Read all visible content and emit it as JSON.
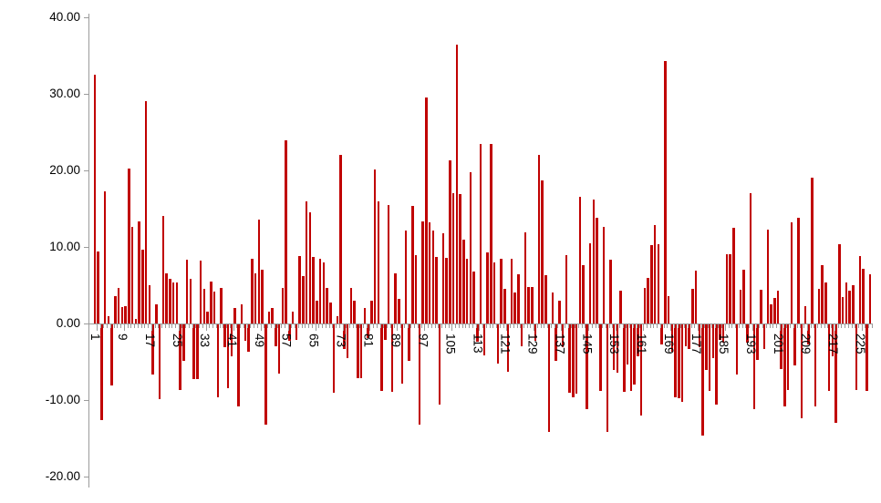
{
  "chart_data": {
    "type": "bar",
    "title": "",
    "xlabel": "",
    "ylabel": "",
    "grid": false,
    "legend": null,
    "ylim": [
      -20,
      40
    ],
    "y_ticks": [
      {
        "label": "40.00",
        "value": 40
      },
      {
        "label": "30.00",
        "value": 30
      },
      {
        "label": "20.00",
        "value": 20
      },
      {
        "label": "10.00",
        "value": 10
      },
      {
        "label": "0.00",
        "value": 0
      },
      {
        "label": "-10.00",
        "value": -10
      },
      {
        "label": "-20.00",
        "value": -20
      }
    ],
    "x_tick_start": 1,
    "x_tick_step": 8,
    "x_tick_labels": [
      "1",
      "9",
      "17",
      "25",
      "33",
      "41",
      "49",
      "57",
      "65",
      "73",
      "81",
      "89",
      "97",
      "105",
      "113",
      "121",
      "129",
      "137",
      "145",
      "153",
      "161",
      "169",
      "177",
      "185",
      "193",
      "201",
      "209",
      "217",
      "225"
    ],
    "n_bars": 228,
    "values": [
      32.5,
      9.4,
      -12.5,
      17.3,
      1.0,
      -8.0,
      3.6,
      4.6,
      2.2,
      2.3,
      20.2,
      12.6,
      0.6,
      13.3,
      9.7,
      29.1,
      5.0,
      -6.6,
      2.5,
      -9.8,
      14.1,
      6.6,
      5.8,
      5.3,
      5.4,
      -8.6,
      -4.8,
      8.3,
      5.8,
      -7.1,
      -7.1,
      8.2,
      4.5,
      1.5,
      5.5,
      4.2,
      -9.5,
      4.6,
      -3.0,
      -8.3,
      -4.2,
      2.0,
      -10.7,
      2.5,
      -2.2,
      -3.6,
      8.5,
      6.6,
      13.6,
      7.0,
      -13.1,
      1.5,
      2.0,
      -2.8,
      -6.4,
      4.6,
      23.9,
      -2.2,
      1.5,
      -2.0,
      8.8,
      6.2,
      15.9,
      14.5,
      8.7,
      3.0,
      8.5,
      8.0,
      4.6,
      2.7,
      -8.9,
      1.0,
      22.0,
      -3.2,
      -4.4,
      4.6,
      3.0,
      -7.0,
      -7.0,
      2.0,
      -1.8,
      3.0,
      20.1,
      16.0,
      -8.7,
      -2.0,
      15.5,
      -8.8,
      6.5,
      3.2,
      -7.7,
      12.1,
      -4.8,
      15.4,
      8.9,
      -13.1,
      13.3,
      29.5,
      13.2,
      12.2,
      8.7,
      -10.5,
      11.8,
      8.6,
      21.3,
      17.0,
      36.4,
      16.9,
      11.0,
      8.5,
      19.8,
      6.8,
      -2.3,
      23.5,
      -4.1,
      9.3,
      23.4,
      8.0,
      -5.1,
      8.5,
      4.5,
      -6.2,
      8.5,
      4.0,
      6.4,
      -2.8,
      11.9,
      4.8,
      4.8,
      -2.2,
      22.0,
      18.7,
      6.3,
      -14.1,
      4.0,
      -4.8,
      3.0,
      -3.0,
      8.9,
      -8.9,
      -9.5,
      -9.0,
      16.6,
      7.6,
      -11.1,
      10.5,
      16.2,
      13.8,
      -8.7,
      12.6,
      -14.1,
      8.3,
      -6.0,
      -6.3,
      4.3,
      -8.8,
      -5.2,
      -8.7,
      -7.8,
      -4.2,
      -11.9,
      4.7,
      6.0,
      10.2,
      12.8,
      10.3,
      -2.6,
      34.3,
      3.6,
      -3.6,
      -9.5,
      -9.7,
      -10.1,
      -2.8,
      -3.2,
      4.5,
      6.9,
      -3.0,
      -14.5,
      -6.0,
      -8.7,
      -4.4,
      -10.5,
      -2.0,
      -2.4,
      9.0,
      9.0,
      12.5,
      -6.6,
      4.4,
      7.0,
      -2.4,
      17.0,
      -11.1,
      -4.6,
      4.4,
      -3.2,
      12.3,
      2.5,
      3.3,
      4.3,
      -5.8,
      -10.7,
      -8.6,
      13.2,
      -5.4,
      13.8,
      -12.3,
      2.3,
      -2.6,
      19.0,
      -10.7,
      4.5,
      7.6,
      5.4,
      -8.7,
      -4.2,
      -12.9,
      10.4,
      3.4,
      5.4,
      4.3,
      5.0,
      -8.6,
      8.8,
      7.2,
      -8.7,
      6.4
    ]
  },
  "colors": {
    "bar": "#C00000",
    "axis": "#9B9B9B",
    "text": "#000000",
    "background": "#FFFFFF"
  }
}
